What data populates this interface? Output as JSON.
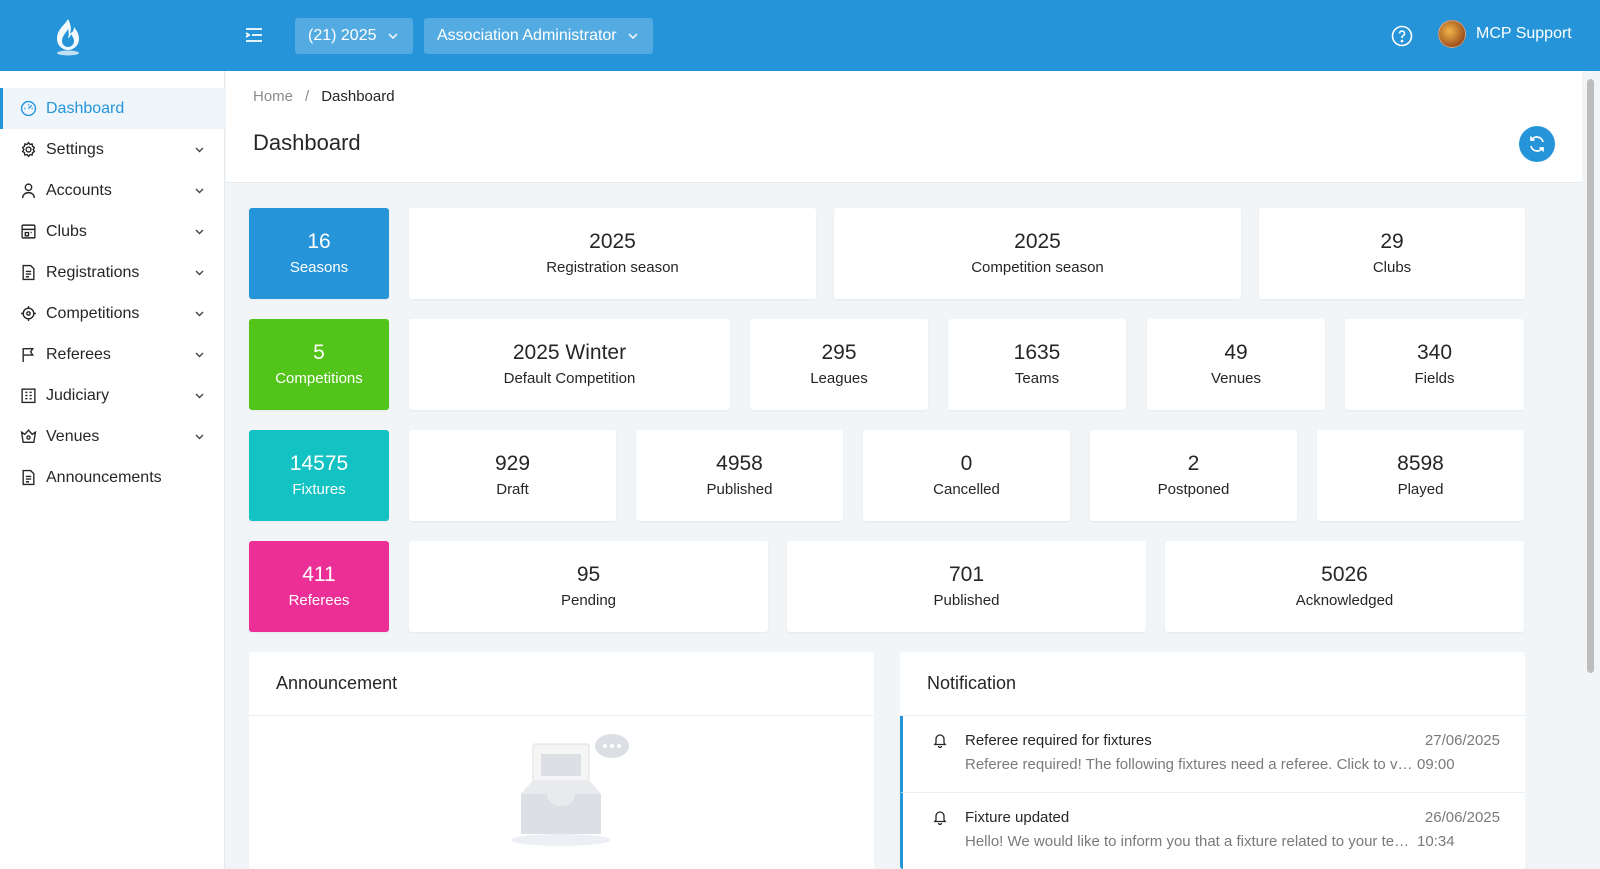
{
  "topbar": {
    "season_select": "(21) 2025",
    "role_select": "Association Administrator",
    "user_name": "MCP Support",
    "colors": {
      "primary": "#2594d9"
    }
  },
  "sidebar": {
    "items": [
      {
        "label": "Dashboard",
        "icon": "dashboard-icon"
      },
      {
        "label": "Settings",
        "icon": "gear-icon"
      },
      {
        "label": "Accounts",
        "icon": "user-icon"
      },
      {
        "label": "Clubs",
        "icon": "club-icon"
      },
      {
        "label": "Registrations",
        "icon": "document-icon"
      },
      {
        "label": "Competitions",
        "icon": "target-icon"
      },
      {
        "label": "Referees",
        "icon": "flag-icon"
      },
      {
        "label": "Judiciary",
        "icon": "building-icon"
      },
      {
        "label": "Venues",
        "icon": "stadium-icon"
      },
      {
        "label": "Announcements",
        "icon": "document-icon"
      }
    ]
  },
  "breadcrumb": {
    "home": "Home",
    "sep": "/",
    "current": "Dashboard"
  },
  "page": {
    "title": "Dashboard"
  },
  "rows": {
    "seasons": {
      "value": "16",
      "label": "Seasons",
      "color": "#2594d9",
      "items": [
        {
          "value": "2025",
          "label": "Registration season"
        },
        {
          "value": "2025",
          "label": "Competition season"
        },
        {
          "value": "29",
          "label": "Clubs"
        }
      ]
    },
    "competitions": {
      "value": "5",
      "label": "Competitions",
      "color": "#52c41a",
      "items": [
        {
          "value": "2025 Winter",
          "label": "Default Competition"
        },
        {
          "value": "295",
          "label": "Leagues"
        },
        {
          "value": "1635",
          "label": "Teams"
        },
        {
          "value": "49",
          "label": "Venues"
        },
        {
          "value": "340",
          "label": "Fields"
        }
      ]
    },
    "fixtures": {
      "value": "14575",
      "label": "Fixtures",
      "color": "#13c2c2",
      "items": [
        {
          "value": "929",
          "label": "Draft"
        },
        {
          "value": "4958",
          "label": "Published"
        },
        {
          "value": "0",
          "label": "Cancelled"
        },
        {
          "value": "2",
          "label": "Postponed"
        },
        {
          "value": "8598",
          "label": "Played"
        }
      ]
    },
    "referees": {
      "value": "411",
      "label": "Referees",
      "color": "#eb2f96",
      "items": [
        {
          "value": "95",
          "label": "Pending"
        },
        {
          "value": "701",
          "label": "Published"
        },
        {
          "value": "5026",
          "label": "Acknowledged"
        }
      ]
    }
  },
  "announcement": {
    "title": "Announcement"
  },
  "notification": {
    "title": "Notification",
    "items": [
      {
        "title": "Referee required for fixtures",
        "date": "27/06/2025",
        "time": "09:00",
        "text": "Referee required! The following fixtures need a referee. Click to view the fixtures list."
      },
      {
        "title": "Fixture updated",
        "date": "26/06/2025",
        "time": "10:34",
        "text": "Hello! We would like to inform you that a fixture related to your team has been updated."
      }
    ]
  }
}
